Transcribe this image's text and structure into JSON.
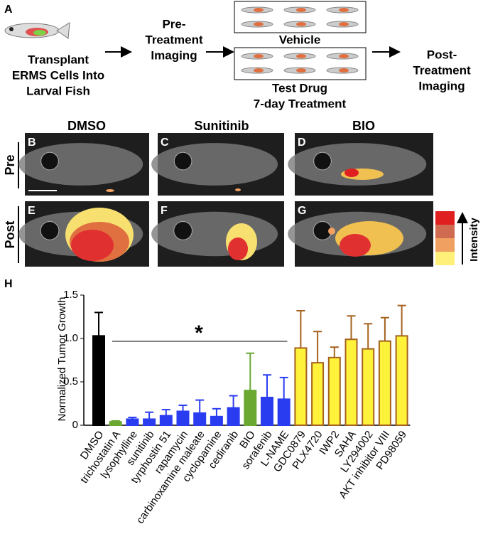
{
  "panel_a": {
    "label": "A",
    "transplant": [
      "Transplant",
      "ERMS Cells Into",
      "Larval Fish"
    ],
    "pre": [
      "Pre-",
      "Treatment",
      "Imaging"
    ],
    "vehicle": "Vehicle",
    "drug": [
      "Test Drug",
      "7-day Treatment"
    ],
    "post": [
      "Post-",
      "Treatment",
      "Imaging"
    ]
  },
  "images": {
    "labels": [
      "B",
      "C",
      "D",
      "E",
      "F",
      "G"
    ],
    "columns": [
      "DMSO",
      "Sunitinib",
      "BIO"
    ],
    "rows": [
      "Pre",
      "Post"
    ],
    "legend": "Intensity"
  },
  "chart_data": {
    "type": "bar",
    "panel_label": "H",
    "ylabel": "Normalized Tumor Growth",
    "categories": [
      "DMSO",
      "trichostatin A",
      "lysophylline",
      "sunitinib",
      "tyrphostin 51",
      "rapamycin",
      "carbinoxamine maleate",
      "cyclopamine",
      "cediranib",
      "BIO",
      "sorafenib",
      "L-NAME",
      "GDC0879",
      "PLX4720",
      "IWP2",
      "SAHA",
      "LY294002",
      "AKT inhibitor VIII",
      "PD98059"
    ],
    "values": [
      1.03,
      0.04,
      0.07,
      0.07,
      0.11,
      0.16,
      0.14,
      0.1,
      0.2,
      0.4,
      0.32,
      0.3,
      0.89,
      0.72,
      0.78,
      0.99,
      0.88,
      0.97,
      1.03
    ],
    "errors": [
      0.27,
      0.01,
      0.02,
      0.08,
      0.07,
      0.07,
      0.15,
      0.09,
      0.14,
      0.43,
      0.26,
      0.25,
      0.43,
      0.36,
      0.12,
      0.27,
      0.29,
      0.27,
      0.35
    ],
    "colors": [
      "#000000",
      "#6aa832",
      "#2a3cf0",
      "#2a3cf0",
      "#2a3cf0",
      "#2a3cf0",
      "#2a3cf0",
      "#2a3cf0",
      "#2a3cf0",
      "#6aa832",
      "#2a3cf0",
      "#2a3cf0",
      "#fff23a",
      "#fff23a",
      "#fff23a",
      "#fff23a",
      "#fff23a",
      "#fff23a",
      "#fff23a"
    ],
    "edgecolors": [
      "#000000",
      "#6aa832",
      "#2a3cf0",
      "#2a3cf0",
      "#2a3cf0",
      "#2a3cf0",
      "#2a3cf0",
      "#2a3cf0",
      "#2a3cf0",
      "#6aa832",
      "#2a3cf0",
      "#2a3cf0",
      "#a5621e",
      "#a5621e",
      "#a5621e",
      "#a5621e",
      "#a5621e",
      "#a5621e",
      "#a5621e"
    ],
    "ylim": [
      0,
      1.5
    ],
    "yticks": [
      0,
      0.5,
      {
        "value": 1,
        "label": "1.0"
      },
      {
        "value": 1.5,
        "label": "1.5"
      }
    ],
    "annotation": "*"
  }
}
